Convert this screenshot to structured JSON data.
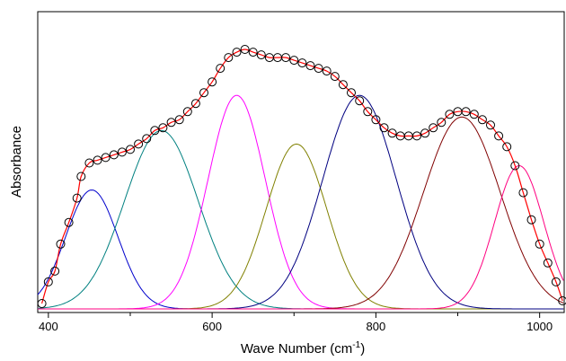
{
  "chart_data": {
    "type": "line",
    "xlabel_main": "Wave Number (cm",
    "xlabel_sup": "-1",
    "xlabel_end": ")",
    "ylabel": "Absorbance",
    "xlim": [
      387,
      1030
    ],
    "ylim": [
      0,
      1.0
    ],
    "x_ticks": [
      400,
      600,
      800,
      1000
    ],
    "x_tick_labels": [
      "400",
      "600",
      "800",
      "1000"
    ],
    "minor_tick_step": 100,
    "grid": false,
    "legend": "none",
    "colors": {
      "fit": "#ff0000",
      "markers": "#000000",
      "peaks": [
        "#0000cc",
        "#008080",
        "#ff00ff",
        "#808000",
        "#000080",
        "#800000",
        "#ff0080"
      ]
    },
    "peaks": [
      {
        "center": 453,
        "height": 0.44,
        "sigma": 32
      },
      {
        "center": 538,
        "height": 0.66,
        "sigma": 45
      },
      {
        "center": 630,
        "height": 0.79,
        "sigma": 35
      },
      {
        "center": 703,
        "height": 0.61,
        "sigma": 37
      },
      {
        "center": 780,
        "height": 0.79,
        "sigma": 45
      },
      {
        "center": 905,
        "height": 0.71,
        "sigma": 47
      },
      {
        "center": 975,
        "height": 0.53,
        "sigma": 30
      }
    ],
    "observed": {
      "x": [
        392,
        400,
        408,
        415,
        425,
        435,
        440,
        450,
        460,
        470,
        480,
        490,
        500,
        510,
        520,
        530,
        540,
        550,
        560,
        570,
        580,
        590,
        600,
        610,
        620,
        630,
        640,
        650,
        660,
        670,
        680,
        690,
        700,
        710,
        720,
        730,
        740,
        750,
        760,
        770,
        780,
        790,
        800,
        810,
        820,
        830,
        840,
        850,
        860,
        870,
        880,
        890,
        900,
        910,
        920,
        930,
        940,
        950,
        960,
        970,
        980,
        990,
        1000,
        1010,
        1020,
        1028
      ],
      "y": [
        0.02,
        0.1,
        0.14,
        0.24,
        0.32,
        0.41,
        0.49,
        0.54,
        0.55,
        0.56,
        0.57,
        0.58,
        0.59,
        0.61,
        0.63,
        0.66,
        0.67,
        0.69,
        0.7,
        0.73,
        0.76,
        0.8,
        0.84,
        0.89,
        0.93,
        0.95,
        0.96,
        0.95,
        0.94,
        0.93,
        0.93,
        0.93,
        0.92,
        0.91,
        0.9,
        0.89,
        0.88,
        0.86,
        0.83,
        0.8,
        0.77,
        0.73,
        0.7,
        0.67,
        0.65,
        0.64,
        0.64,
        0.64,
        0.65,
        0.67,
        0.69,
        0.72,
        0.73,
        0.73,
        0.72,
        0.7,
        0.68,
        0.64,
        0.6,
        0.53,
        0.43,
        0.33,
        0.24,
        0.17,
        0.1,
        0.03
      ]
    }
  }
}
